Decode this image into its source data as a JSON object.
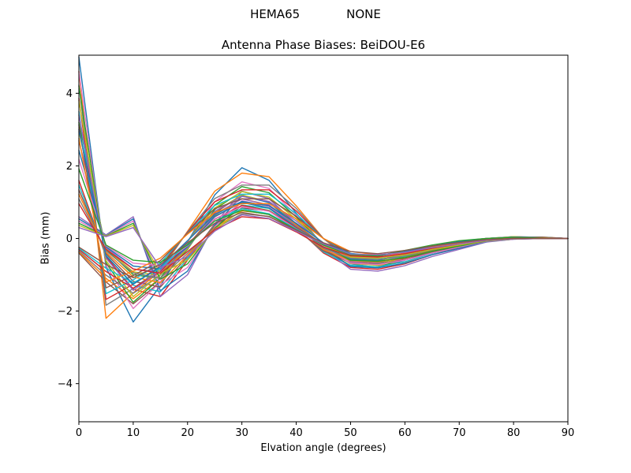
{
  "header": {
    "left": "HEMA65",
    "right": "NONE"
  },
  "chart_data": {
    "type": "line",
    "title": "Antenna Phase Biases: BeiDOU-E6",
    "xlabel": "Elvation angle (degrees)",
    "ylabel": "Bias (mm)",
    "xlim": [
      0,
      90
    ],
    "ylim": [
      -5.05,
      5.05
    ],
    "x_ticks": [
      0,
      10,
      20,
      30,
      40,
      50,
      60,
      70,
      80,
      90
    ],
    "y_ticks": [
      -4,
      -2,
      0,
      2,
      4
    ],
    "grid": false,
    "legend": "none",
    "line_width": 1.4,
    "palette": [
      "#1f77b4",
      "#ff7f0e",
      "#2ca02c",
      "#d62728",
      "#9467bd",
      "#8c564b",
      "#e377c2",
      "#7f7f7f",
      "#bcbd22",
      "#17becf"
    ],
    "x": [
      0,
      5,
      10,
      15,
      20,
      25,
      30,
      35,
      40,
      45,
      50,
      55,
      60,
      65,
      70,
      75,
      80,
      85,
      90
    ],
    "series": [
      [
        5.0,
        -0.8,
        -2.3,
        -1.3,
        -0.1,
        1.2,
        1.95,
        1.6,
        0.7,
        -0.2,
        -0.7,
        -0.8,
        -0.6,
        -0.35,
        -0.15,
        -0.03,
        0.05,
        0.03,
        0.0
      ],
      [
        4.6,
        -2.2,
        -1.5,
        -0.9,
        0.2,
        1.3,
        1.8,
        1.7,
        0.9,
        0.0,
        -0.6,
        -0.75,
        -0.65,
        -0.4,
        -0.2,
        -0.05,
        0.02,
        0.04,
        0.0
      ],
      [
        3.2,
        -0.3,
        -1.0,
        -1.1,
        -0.3,
        0.8,
        1.3,
        1.1,
        0.4,
        -0.3,
        -0.75,
        -0.8,
        -0.55,
        -0.3,
        -0.1,
        0.0,
        0.05,
        0.02,
        0.0
      ],
      [
        1.6,
        -0.5,
        -1.4,
        -1.6,
        -0.6,
        0.4,
        1.0,
        0.9,
        0.3,
        -0.4,
        -0.8,
        -0.85,
        -0.7,
        -0.45,
        -0.25,
        -0.08,
        0.0,
        0.0,
        0.0
      ],
      [
        0.6,
        0.1,
        0.6,
        -1.6,
        -1.0,
        0.4,
        1.3,
        1.1,
        0.4,
        -0.3,
        -0.85,
        -0.9,
        -0.75,
        -0.5,
        -0.3,
        -0.1,
        -0.02,
        0.0,
        0.0
      ],
      [
        -0.4,
        -1.2,
        -1.8,
        -1.2,
        -0.2,
        0.7,
        1.2,
        1.0,
        0.4,
        -0.2,
        -0.6,
        -0.7,
        -0.55,
        -0.35,
        -0.18,
        -0.05,
        0.0,
        0.0,
        0.0
      ],
      [
        4.6,
        -0.74,
        -1.93,
        -1.2,
        -0.09,
        1.01,
        1.56,
        1.38,
        0.64,
        -0.18,
        -0.64,
        -0.74,
        -0.55,
        -0.32,
        -0.14,
        -0.03,
        0.05,
        0.03,
        0.0
      ],
      [
        4.23,
        -1.84,
        -1.38,
        -0.83,
        0.18,
        1.1,
        1.47,
        1.47,
        0.83,
        0.0,
        -0.55,
        -0.69,
        -0.6,
        -0.37,
        -0.18,
        -0.05,
        0.02,
        0.04,
        0.0
      ],
      [
        2.94,
        -0.28,
        -0.92,
        -1.01,
        -0.28,
        0.74,
        1.2,
        1.01,
        0.37,
        -0.28,
        -0.69,
        -0.74,
        -0.51,
        -0.28,
        -0.09,
        0.0,
        0.05,
        0.02,
        0.0
      ],
      [
        1.47,
        -0.46,
        -1.29,
        -1.47,
        -0.55,
        0.37,
        0.92,
        0.83,
        0.28,
        -0.37,
        -0.74,
        -0.78,
        -0.64,
        -0.41,
        -0.23,
        -0.07,
        0.0,
        0.0,
        0.0
      ],
      [
        0.54,
        0.09,
        0.54,
        -1.44,
        -0.9,
        0.36,
        1.17,
        0.99,
        0.36,
        -0.27,
        -0.77,
        -0.81,
        -0.68,
        -0.45,
        -0.27,
        -0.09,
        -0.02,
        0.0,
        0.0
      ],
      [
        -0.37,
        -1.1,
        -1.66,
        -1.1,
        -0.18,
        0.64,
        1.1,
        0.92,
        0.37,
        -0.18,
        -0.55,
        -0.64,
        -0.51,
        -0.32,
        -0.17,
        -0.05,
        0.0,
        0.0,
        0.0
      ],
      [
        4.2,
        -0.67,
        -1.76,
        -1.09,
        -0.08,
        0.92,
        1.43,
        1.26,
        0.59,
        -0.17,
        -0.59,
        -0.67,
        -0.5,
        -0.29,
        -0.13,
        -0.03,
        0.04,
        0.03,
        0.0
      ],
      [
        3.86,
        -1.68,
        -1.26,
        -0.76,
        0.17,
        1.01,
        1.34,
        1.34,
        0.76,
        0.0,
        -0.5,
        -0.63,
        -0.55,
        -0.34,
        -0.17,
        -0.04,
        0.02,
        0.03,
        0.0
      ],
      [
        2.69,
        -0.25,
        -0.84,
        -0.92,
        -0.25,
        0.67,
        1.09,
        0.92,
        0.34,
        -0.25,
        -0.63,
        -0.67,
        -0.46,
        -0.25,
        -0.08,
        0.0,
        0.04,
        0.02,
        0.0
      ],
      [
        1.34,
        -0.42,
        -1.18,
        -1.34,
        -0.5,
        0.34,
        0.84,
        0.76,
        0.25,
        -0.34,
        -0.67,
        -0.71,
        -0.59,
        -0.38,
        -0.21,
        -0.07,
        0.0,
        0.0,
        0.0
      ],
      [
        0.48,
        0.08,
        0.48,
        -1.28,
        -0.8,
        0.32,
        1.04,
        0.88,
        0.32,
        -0.24,
        -0.68,
        -0.72,
        -0.6,
        -0.4,
        -0.24,
        -0.08,
        -0.02,
        0.0,
        0.0
      ],
      [
        -0.34,
        -1.01,
        -1.51,
        -1.01,
        -0.17,
        0.59,
        1.01,
        0.84,
        0.34,
        -0.17,
        -0.5,
        -0.59,
        -0.46,
        -0.29,
        -0.15,
        -0.04,
        0.0,
        0.0,
        0.0
      ],
      [
        3.8,
        -0.61,
        -1.6,
        -0.99,
        -0.08,
        0.84,
        1.29,
        1.14,
        0.53,
        -0.15,
        -0.53,
        -0.61,
        -0.46,
        -0.27,
        -0.11,
        -0.02,
        0.04,
        0.02,
        0.0
      ],
      [
        3.5,
        -1.52,
        -1.14,
        -0.68,
        0.15,
        0.91,
        1.22,
        1.22,
        0.68,
        0.0,
        -0.46,
        -0.57,
        -0.49,
        -0.3,
        -0.15,
        -0.04,
        0.02,
        0.03,
        0.0
      ],
      [
        2.43,
        -0.23,
        -0.76,
        -0.84,
        -0.23,
        0.61,
        0.99,
        0.84,
        0.3,
        -0.23,
        -0.57,
        -0.61,
        -0.42,
        -0.23,
        -0.08,
        0.0,
        0.04,
        0.02,
        0.0
      ],
      [
        1.22,
        -0.38,
        -1.06,
        -1.22,
        -0.46,
        0.3,
        0.76,
        0.68,
        0.23,
        -0.3,
        -0.61,
        -0.65,
        -0.53,
        -0.34,
        -0.19,
        -0.06,
        0.0,
        0.0,
        0.0
      ],
      [
        0.42,
        0.07,
        0.42,
        -1.12,
        -0.7,
        0.28,
        0.91,
        0.77,
        0.28,
        -0.21,
        -0.6,
        -0.63,
        -0.53,
        -0.35,
        -0.21,
        -0.07,
        -0.01,
        0.0,
        0.0
      ],
      [
        -0.3,
        -0.91,
        -1.37,
        -0.91,
        -0.15,
        0.53,
        0.91,
        0.76,
        0.3,
        -0.15,
        -0.46,
        -0.53,
        -0.42,
        -0.27,
        -0.14,
        -0.04,
        0.0,
        0.0,
        0.0
      ],
      [
        3.4,
        -0.54,
        -1.43,
        -0.88,
        -0.07,
        0.75,
        1.16,
        1.02,
        0.48,
        -0.14,
        -0.48,
        -0.54,
        -0.41,
        -0.24,
        -0.1,
        -0.02,
        0.03,
        0.02,
        0.0
      ],
      [
        3.13,
        -1.36,
        -1.02,
        -0.61,
        0.14,
        0.82,
        1.09,
        1.09,
        0.61,
        0.0,
        -0.41,
        -0.51,
        -0.44,
        -0.27,
        -0.14,
        -0.03,
        0.01,
        0.03,
        0.0
      ],
      [
        2.18,
        -0.2,
        -0.68,
        -0.75,
        -0.2,
        0.54,
        0.88,
        0.75,
        0.27,
        -0.2,
        -0.51,
        -0.54,
        -0.37,
        -0.2,
        -0.07,
        0.0,
        0.03,
        0.01,
        0.0
      ],
      [
        1.09,
        -0.34,
        -0.95,
        -1.09,
        -0.41,
        0.27,
        0.68,
        0.61,
        0.2,
        -0.27,
        -0.54,
        -0.58,
        -0.48,
        -0.31,
        -0.17,
        -0.05,
        0.0,
        0.0,
        0.0
      ],
      [
        0.36,
        0.06,
        0.36,
        -0.96,
        -0.6,
        0.24,
        0.78,
        0.66,
        0.24,
        -0.18,
        -0.51,
        -0.54,
        -0.45,
        -0.3,
        -0.18,
        -0.06,
        -0.01,
        0.0,
        0.0
      ],
      [
        -0.27,
        -0.82,
        -1.22,
        -0.82,
        -0.14,
        0.48,
        0.82,
        0.68,
        0.27,
        -0.14,
        -0.41,
        -0.48,
        -0.37,
        -0.24,
        -0.12,
        -0.03,
        0.0,
        0.0,
        0.0
      ],
      [
        3.0,
        -0.48,
        -1.26,
        -0.78,
        -0.06,
        0.66,
        1.02,
        0.9,
        0.42,
        -0.12,
        -0.42,
        -0.48,
        -0.36,
        -0.21,
        -0.09,
        -0.02,
        0.03,
        0.02,
        0.0
      ],
      [
        2.76,
        -1.2,
        -0.9,
        -0.54,
        0.12,
        0.72,
        0.96,
        0.96,
        0.54,
        0.0,
        -0.36,
        -0.45,
        -0.39,
        -0.24,
        -0.12,
        -0.03,
        0.01,
        0.02,
        0.0
      ],
      [
        1.92,
        -0.18,
        -0.6,
        -0.66,
        -0.18,
        0.48,
        0.78,
        0.66,
        0.24,
        -0.18,
        -0.45,
        -0.48,
        -0.33,
        -0.18,
        -0.06,
        0.0,
        0.03,
        0.01,
        0.0
      ],
      [
        0.96,
        -0.3,
        -0.84,
        -0.96,
        -0.36,
        0.24,
        0.6,
        0.54,
        0.18,
        -0.24,
        -0.48,
        -0.51,
        -0.42,
        -0.27,
        -0.15,
        -0.05,
        0.0,
        0.0,
        0.0
      ],
      [
        0.3,
        0.05,
        0.3,
        -0.8,
        -0.5,
        0.2,
        0.65,
        0.55,
        0.2,
        -0.15,
        -0.43,
        -0.45,
        -0.38,
        -0.25,
        -0.15,
        -0.05,
        -0.01,
        0.0,
        0.0
      ],
      [
        -0.24,
        -0.72,
        -1.08,
        -0.72,
        -0.12,
        0.42,
        0.72,
        0.6,
        0.24,
        -0.12,
        -0.36,
        -0.42,
        -0.33,
        -0.21,
        -0.11,
        -0.03,
        0.0,
        0.0,
        0.0
      ]
    ]
  }
}
